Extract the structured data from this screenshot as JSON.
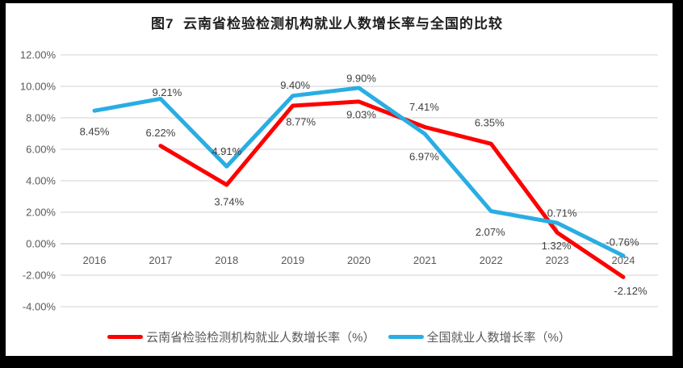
{
  "title": "图7  云南省检验检测机构就业人数增长率与全国的比较",
  "chart_data": {
    "type": "line",
    "x": [
      "2016",
      "2017",
      "2018",
      "2019",
      "2020",
      "2021",
      "2022",
      "2023",
      "2024"
    ],
    "series": [
      {
        "name": "云南省检验检测机构就业人数增长率（%）",
        "color": "#FF0000",
        "values": [
          null,
          6.22,
          3.74,
          8.77,
          9.03,
          7.41,
          6.35,
          0.71,
          -2.12
        ],
        "labels": [
          null,
          "6.22%",
          "3.74%",
          "8.77%",
          "9.03%",
          "7.41%",
          "6.35%",
          "0.71%",
          "-2.12%"
        ],
        "label_offsets": [
          null,
          [
            0,
            -16
          ],
          [
            3,
            21
          ],
          [
            10,
            20
          ],
          [
            3,
            16
          ],
          [
            -1,
            -25
          ],
          [
            -2,
            -26
          ],
          [
            6,
            -24
          ],
          [
            9,
            17
          ]
        ]
      },
      {
        "name": "全国就业人数增长率（%）",
        "color": "#29ADE3",
        "values": [
          8.45,
          9.21,
          4.91,
          9.4,
          9.9,
          6.97,
          2.07,
          1.32,
          -0.76
        ],
        "labels": [
          "8.45%",
          "9.21%",
          "4.91%",
          "9.40%",
          "9.90%",
          "6.97%",
          "2.07%",
          "1.32%",
          "-0.76%"
        ],
        "label_offsets": [
          [
            0,
            26
          ],
          [
            8,
            -8
          ],
          [
            0,
            -19
          ],
          [
            3,
            -13
          ],
          [
            3,
            -12
          ],
          [
            -1,
            28
          ],
          [
            -1,
            26
          ],
          [
            -1,
            28
          ],
          [
            -1,
            -17
          ]
        ]
      }
    ],
    "ylim": [
      -4,
      12
    ],
    "ytick_step": 2,
    "ytick_labels": [
      "12.00%",
      "10.00%",
      "8.00%",
      "6.00%",
      "4.00%",
      "2.00%",
      "0.00%",
      "-2.00%",
      "-4.00%"
    ],
    "grid": true,
    "legend_position": "bottom",
    "annotations": [
      {
        "type": "leader-line",
        "series": 0,
        "index": 7,
        "from_offset": [
          -2,
          -9
        ],
        "to_offset": [
          4,
          4
        ]
      }
    ]
  },
  "style": {
    "frame_color": "#000000",
    "background": "#FFFFFF",
    "gridline_color": "#D9D9D9",
    "axis_line_color": "#C6C6C6",
    "tick_text_color": "#595959",
    "data_label_color": "#404040",
    "title_color": "#1F1F1F",
    "legend_text_color": "#595959",
    "leader_line_color": "#BFBFBF"
  }
}
